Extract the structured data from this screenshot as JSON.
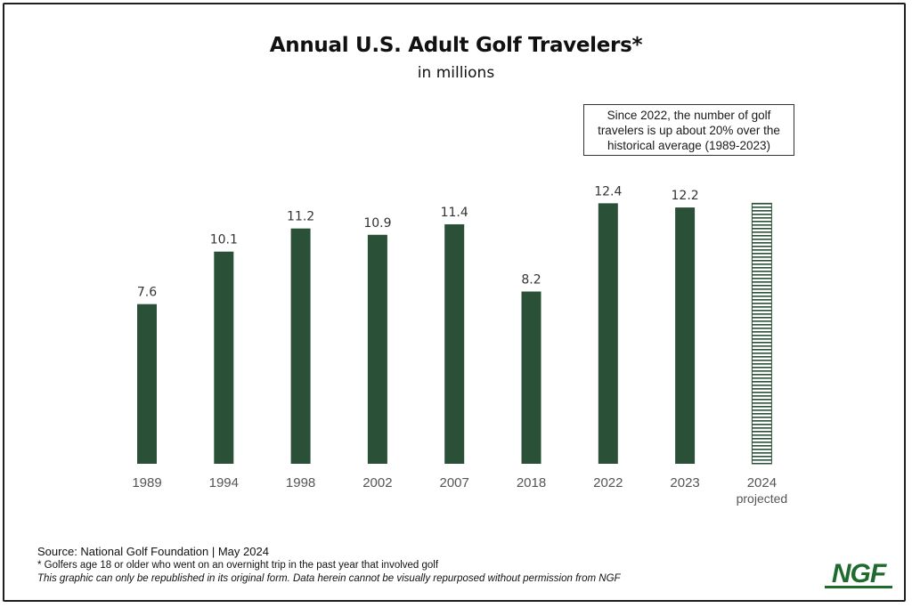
{
  "chart_data": {
    "type": "bar",
    "title": "Annual U.S. Adult Golf Travelers*",
    "subtitle": "in millions",
    "categories": [
      "1989",
      "1994",
      "1998",
      "2002",
      "2007",
      "2018",
      "2022",
      "2023",
      "2024"
    ],
    "category_sublabels": [
      "",
      "",
      "",
      "",
      "",
      "",
      "",
      "",
      "projected"
    ],
    "values": [
      7.6,
      10.1,
      11.2,
      10.9,
      11.4,
      8.2,
      12.4,
      12.2,
      12.4
    ],
    "value_labels": [
      "7.6",
      "10.1",
      "11.2",
      "10.9",
      "11.4",
      "8.2",
      "12.4",
      "12.2",
      ""
    ],
    "projected": [
      false,
      false,
      false,
      false,
      false,
      false,
      false,
      false,
      true
    ],
    "xlabel": "",
    "ylabel": "",
    "ylim": [
      0,
      13
    ],
    "grid": false,
    "legend": "none",
    "annotation": "Since 2022, the number of golf travelers is up about 20% over the historical average (1989-2023)"
  },
  "colors": {
    "bar": "#2b5038",
    "projected_stripe": "#2b5038",
    "axis_text": "#555555",
    "value_text": "#333333"
  },
  "footer": {
    "source": "Source: National Golf Foundation | May 2024",
    "note": "* Golfers age 18 or older who went on an overnight trip in the past year that involved golf",
    "disclaimer": "This graphic can only be republished in its original form. Data herein cannot be visually repurposed without permission from NGF"
  },
  "logo": {
    "text": "NGF",
    "color": "#1f6b2e"
  }
}
